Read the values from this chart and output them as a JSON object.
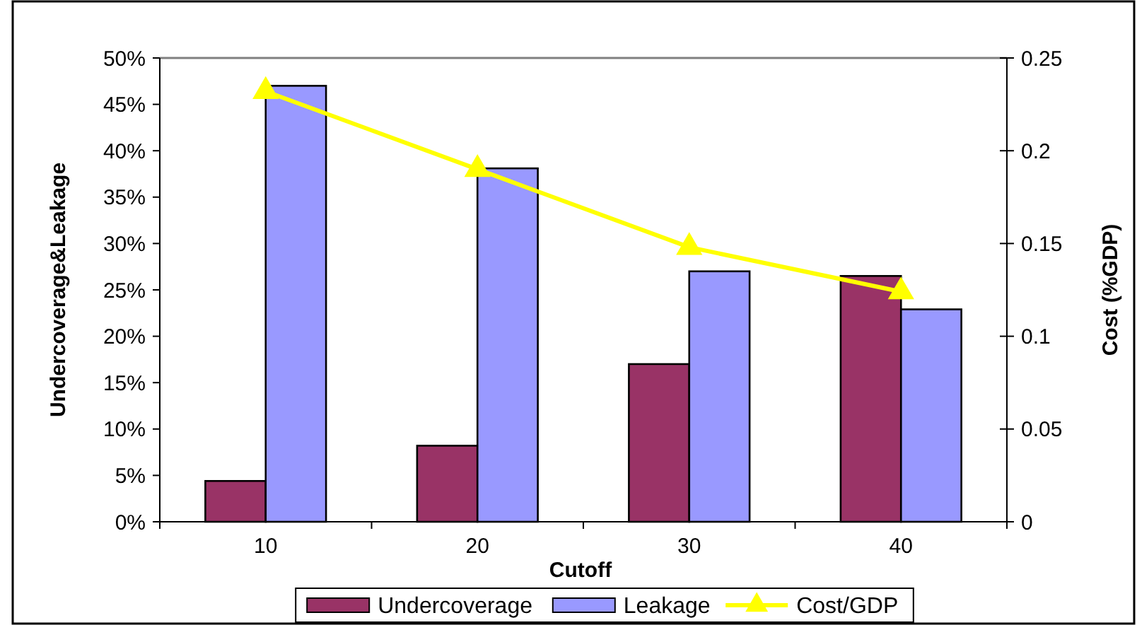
{
  "chart_data": {
    "type": "bar",
    "xlabel": "Cutoff",
    "ylabel": "Undercoverage&Leakage",
    "y2label": "Cost (%GDP)",
    "categories": [
      "10",
      "20",
      "30",
      "40"
    ],
    "series": [
      {
        "name": "Undercoverage",
        "color": "#993366",
        "values": [
          4.4,
          8.2,
          17,
          26.5
        ]
      },
      {
        "name": "Leakage",
        "color": "#9999ff",
        "values": [
          47,
          38.1,
          27,
          22.9
        ]
      },
      {
        "name": "Cost/GDP",
        "type": "line",
        "axis": "y2",
        "color": "#ffff00",
        "values": [
          0.232,
          0.19,
          0.148,
          0.124
        ]
      }
    ],
    "ylim": [
      0,
      50
    ],
    "yticks": [
      {
        "value": 0,
        "label": "0%"
      },
      {
        "value": 5,
        "label": "5%"
      },
      {
        "value": 10,
        "label": "10%"
      },
      {
        "value": 15,
        "label": "15%"
      },
      {
        "value": 20,
        "label": "20%"
      },
      {
        "value": 25,
        "label": "25%"
      },
      {
        "value": 30,
        "label": "30%"
      },
      {
        "value": 35,
        "label": "35%"
      },
      {
        "value": 40,
        "label": "40%"
      },
      {
        "value": 45,
        "label": "45%"
      },
      {
        "value": 50,
        "label": "50%"
      }
    ],
    "y2lim": [
      0,
      0.25
    ],
    "y2ticks": [
      0,
      0.05,
      0.1,
      0.15,
      0.2,
      0.25
    ],
    "marker": "triangle",
    "legend": "bottom"
  }
}
